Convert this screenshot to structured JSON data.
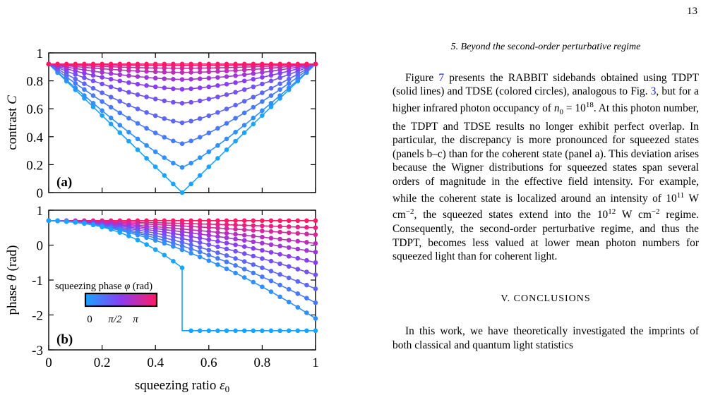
{
  "page": {
    "number": "13"
  },
  "section_heading": "5.   Beyond the second-order perturbative regime",
  "paragraph_1": [
    {
      "t": "Figure "
    },
    {
      "t": "7",
      "link": true
    },
    {
      "t": " presents the RABBIT sidebands obtained using TDPT (solid lines) and TDSE (colored circles), analogous to Fig. "
    },
    {
      "t": "3",
      "link": true
    },
    {
      "t": ", but for a higher infrared photon occupancy of "
    },
    {
      "t": "n",
      "i": true
    },
    {
      "t": "0",
      "sub": true
    },
    {
      "t": " = 10"
    },
    {
      "t": "18",
      "sup": true
    },
    {
      "t": ".  At this photon number, the TDPT and TDSE results no longer exhibit perfect overlap. In particular, the discrepancy is more pronounced for squeezed states (panels b–c) than for the coherent state (panel a). This deviation arises because the Wigner distributions for squeezed states span several orders of magnitude in the effective field intensity. For example, while the coherent state is localized around an intensity of 10"
    },
    {
      "t": "11",
      "sup": true
    },
    {
      "t": " W cm"
    },
    {
      "t": "−2",
      "sup": true
    },
    {
      "t": ", the squeezed states extend into the 10"
    },
    {
      "t": "12",
      "sup": true
    },
    {
      "t": " W cm"
    },
    {
      "t": "−2",
      "sup": true
    },
    {
      "t": " regime. Consequently, the second-order perturbative regime, and thus the TDPT, becomes less valued at lower mean photon numbers for squeezed light than for coherent light."
    }
  ],
  "conclusions_heading": "V.   CONCLUSIONS",
  "paragraph_2": "In this work, we have theoretically investigated the imprints of both classical and quantum light statistics",
  "chart_data": [
    {
      "panel": "(a)",
      "type": "line",
      "ylabel": "contrast C",
      "ylim": [
        0,
        1
      ],
      "yticks": [
        "0",
        "0.2",
        "0.4",
        "0.6",
        "0.8",
        "1"
      ],
      "xlim": [
        0,
        1
      ],
      "x_points": 31,
      "y_at_x0": 0.92,
      "minima_at_x_0_5": [
        0.0,
        0.18,
        0.35,
        0.5,
        0.64,
        0.74,
        0.81,
        0.86,
        0.89,
        0.91,
        0.92
      ],
      "series_phase": [
        "0",
        "π/10",
        "2π/10",
        "3π/10",
        "4π/10",
        "5π/10",
        "6π/10",
        "7π/10",
        "8π/10",
        "9π/10",
        "π"
      ]
    },
    {
      "panel": "(b)",
      "type": "line",
      "ylabel": "phase θ (rad)",
      "xlabel": "squeezing ratio ε0",
      "ylim": [
        -3,
        1
      ],
      "yticks": [
        "-3",
        "-2",
        "-1",
        "0",
        "1"
      ],
      "xlim": [
        0,
        1
      ],
      "xticks": [
        "0",
        "0.2",
        "0.4",
        "0.6",
        "0.8",
        "1"
      ],
      "y_at_x0": 0.7,
      "y_at_x1": [
        -2.45,
        -2.1,
        -1.65,
        -1.25,
        -0.85,
        -0.5,
        -0.2,
        0.05,
        0.3,
        0.5,
        0.7
      ],
      "step_series": {
        "x_jump": 0.5,
        "y_before": -0.65,
        "y_after": -2.45
      },
      "legend_title": "squeezing phase φ (rad)",
      "legend_ticks": [
        "0",
        "π/2",
        "π"
      ],
      "colormap": [
        "#1aa3ff",
        "#8a3df0",
        "#ff1a66"
      ]
    }
  ]
}
